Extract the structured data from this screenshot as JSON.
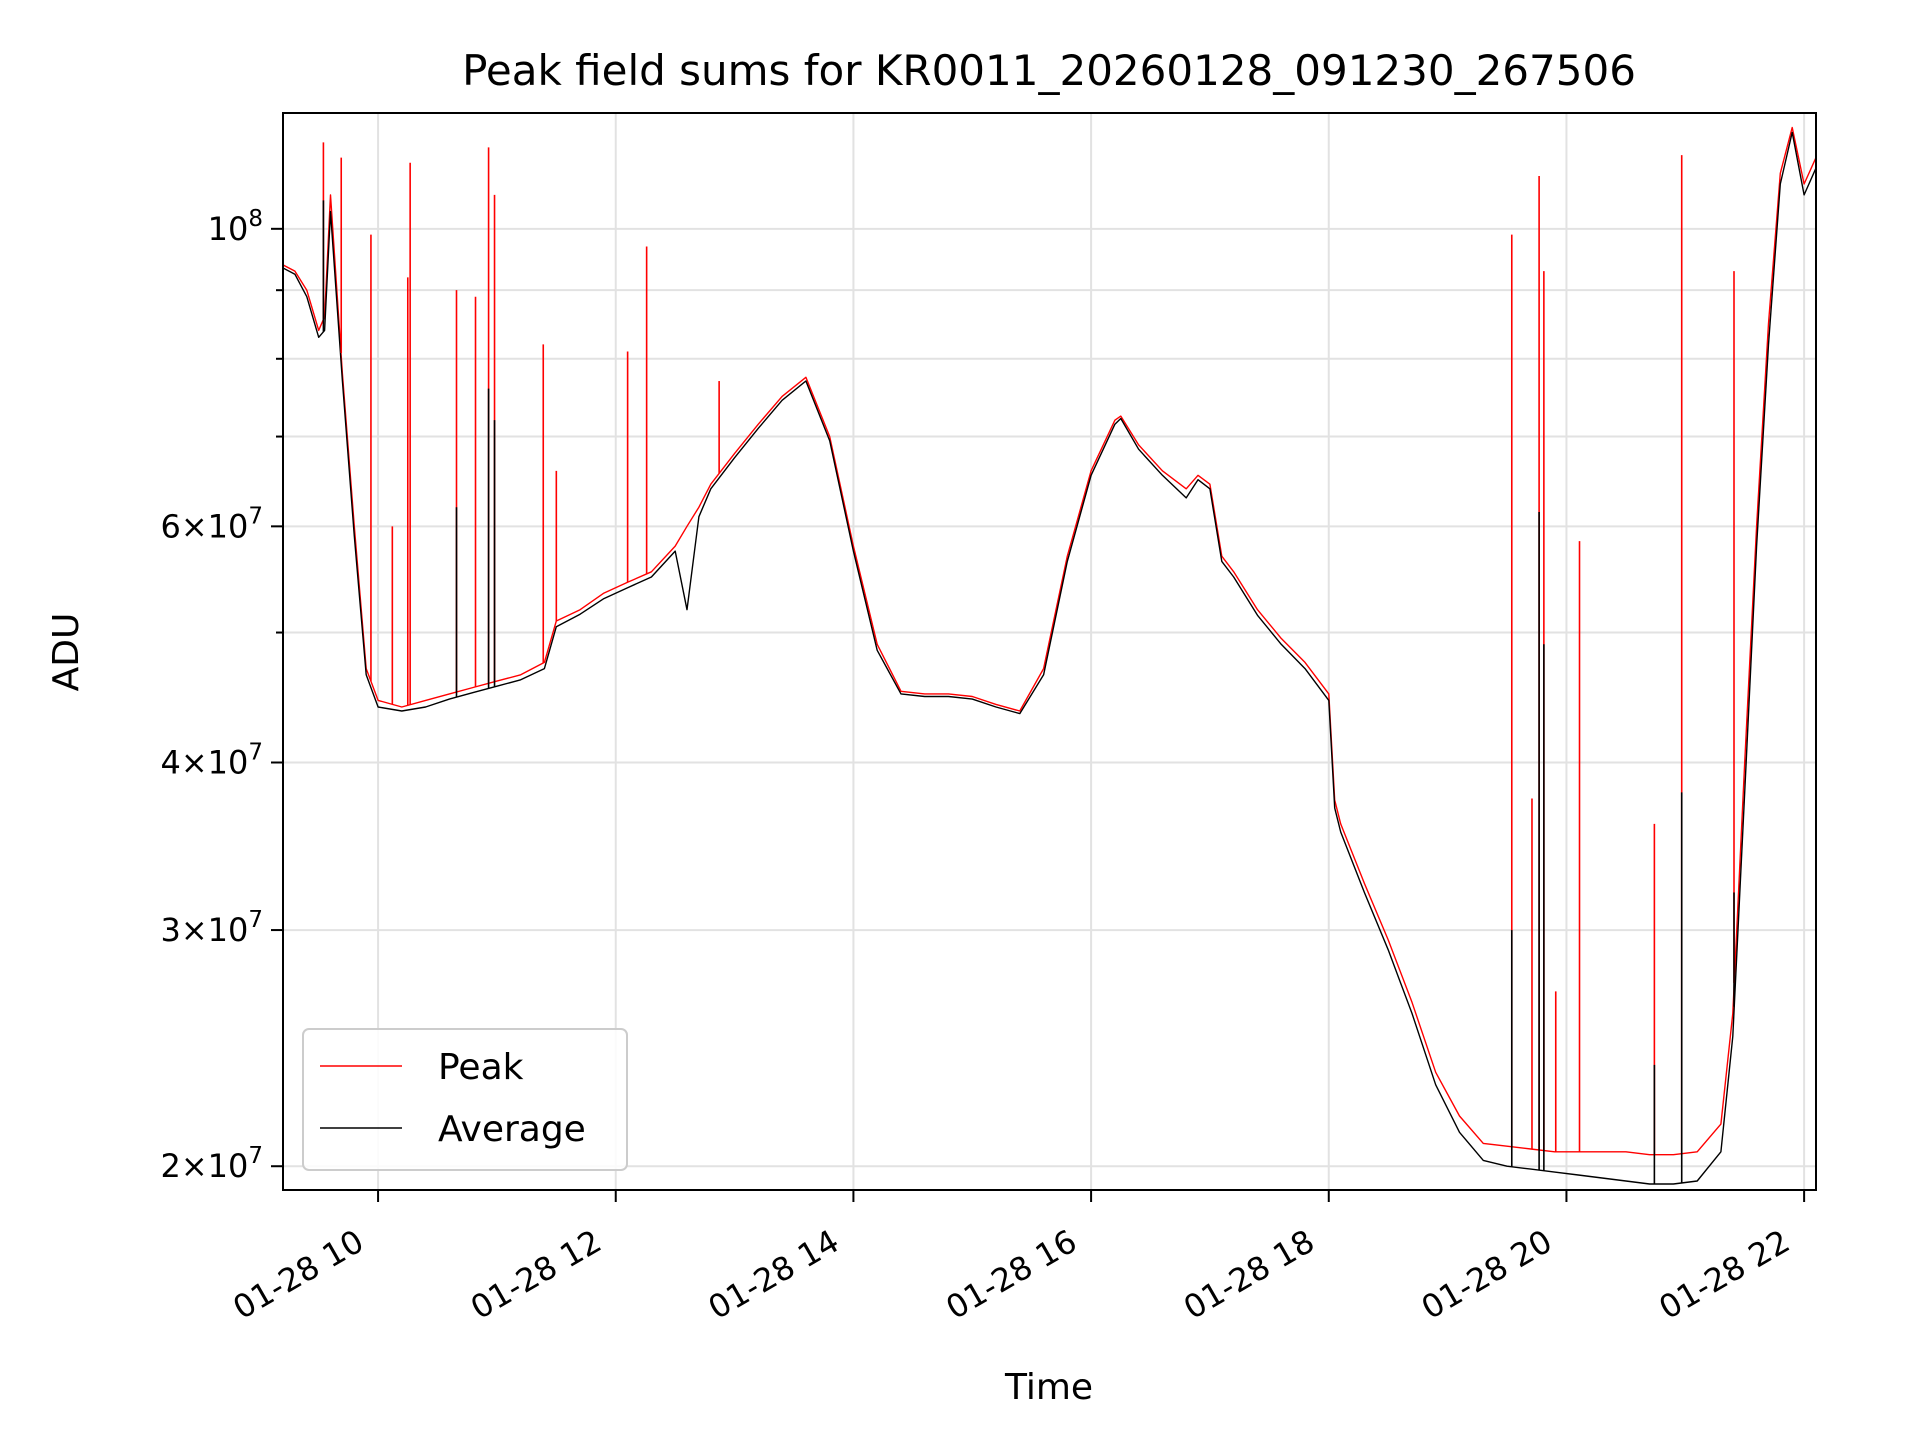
{
  "chart_data": {
    "type": "line",
    "title": "Peak field sums for KR0011_20260128_091230_267506",
    "xlabel": "Time",
    "ylabel": "ADU",
    "y_scale": "log",
    "grid": true,
    "legend_position": "lower-left",
    "xlim_hours": [
      9.2,
      22.1
    ],
    "ylim": [
      19200000,
      122000000
    ],
    "x_ticks": [
      {
        "value": 10,
        "label": "01-28 10"
      },
      {
        "value": 12,
        "label": "01-28 12"
      },
      {
        "value": 14,
        "label": "01-28 14"
      },
      {
        "value": 16,
        "label": "01-28 16"
      },
      {
        "value": 18,
        "label": "01-28 18"
      },
      {
        "value": 20,
        "label": "01-28 20"
      },
      {
        "value": 22,
        "label": "01-28 22"
      }
    ],
    "y_ticks": [
      {
        "value": 20000000,
        "mantissa": "2",
        "base": "10",
        "exp": "7"
      },
      {
        "value": 30000000,
        "mantissa": "3",
        "base": "10",
        "exp": "7"
      },
      {
        "value": 40000000,
        "mantissa": "4",
        "base": "10",
        "exp": "7"
      },
      {
        "value": 60000000,
        "mantissa": "6",
        "base": "10",
        "exp": "7"
      },
      {
        "value": 100000000,
        "mantissa": "",
        "base": "10",
        "exp": "8"
      }
    ],
    "y_minor_ticks": [
      50000000,
      70000000,
      80000000,
      90000000
    ],
    "series": [
      {
        "name": "Peak",
        "color": "#ff0000",
        "x": [
          9.2,
          9.3,
          9.4,
          9.5,
          9.55,
          9.6,
          9.7,
          9.8,
          9.9,
          10.0,
          10.2,
          10.4,
          10.6,
          10.8,
          11.0,
          11.2,
          11.4,
          11.5,
          11.7,
          11.9,
          12.1,
          12.3,
          12.5,
          12.6,
          12.7,
          12.8,
          13.0,
          13.2,
          13.4,
          13.6,
          13.8,
          14.0,
          14.2,
          14.4,
          14.6,
          14.8,
          15.0,
          15.2,
          15.4,
          15.6,
          15.8,
          16.0,
          16.2,
          16.25,
          16.4,
          16.6,
          16.8,
          16.9,
          17.0,
          17.1,
          17.2,
          17.4,
          17.6,
          17.8,
          18.0,
          18.05,
          18.1,
          18.3,
          18.5,
          18.7,
          18.9,
          19.1,
          19.3,
          19.5,
          19.7,
          19.9,
          20.1,
          20.3,
          20.5,
          20.7,
          20.9,
          21.1,
          21.3,
          21.4,
          21.5,
          21.6,
          21.7,
          21.8,
          21.9,
          22.0,
          22.1
        ],
        "values": [
          94000000,
          93000000,
          90000000,
          84000000,
          86000000,
          106000000,
          78000000,
          60000000,
          47000000,
          44500000,
          44000000,
          44500000,
          45000000,
          45500000,
          46000000,
          46500000,
          47500000,
          51000000,
          52000000,
          53500000,
          54500000,
          55500000,
          58000000,
          60000000,
          62000000,
          64500000,
          68000000,
          71500000,
          75000000,
          77500000,
          70000000,
          58000000,
          49000000,
          45200000,
          45000000,
          45000000,
          44800000,
          44200000,
          43700000,
          47000000,
          57000000,
          66000000,
          72000000,
          72500000,
          69000000,
          66000000,
          64000000,
          65500000,
          64500000,
          57000000,
          55500000,
          52000000,
          49500000,
          47500000,
          45000000,
          37500000,
          36000000,
          32500000,
          29500000,
          26500000,
          23500000,
          21800000,
          20800000,
          20700000,
          20600000,
          20500000,
          20500000,
          20500000,
          20500000,
          20400000,
          20400000,
          20500000,
          21500000,
          26000000,
          40000000,
          60000000,
          85000000,
          110000000,
          119000000,
          108000000,
          113000000
        ]
      },
      {
        "name": "Average",
        "color": "#000000",
        "x": [
          9.2,
          9.3,
          9.4,
          9.5,
          9.55,
          9.6,
          9.7,
          9.8,
          9.9,
          10.0,
          10.2,
          10.4,
          10.6,
          10.8,
          11.0,
          11.2,
          11.4,
          11.5,
          11.7,
          11.9,
          12.1,
          12.3,
          12.5,
          12.6,
          12.7,
          12.8,
          13.0,
          13.2,
          13.4,
          13.6,
          13.8,
          14.0,
          14.2,
          14.4,
          14.6,
          14.8,
          15.0,
          15.2,
          15.4,
          15.6,
          15.8,
          16.0,
          16.2,
          16.25,
          16.4,
          16.6,
          16.8,
          16.9,
          17.0,
          17.1,
          17.2,
          17.4,
          17.6,
          17.8,
          18.0,
          18.05,
          18.1,
          18.3,
          18.5,
          18.7,
          18.9,
          19.1,
          19.3,
          19.5,
          19.7,
          19.9,
          20.1,
          20.3,
          20.5,
          20.7,
          20.9,
          21.1,
          21.3,
          21.4,
          21.5,
          21.6,
          21.7,
          21.8,
          21.9,
          22.0,
          22.1
        ],
        "values": [
          93500000,
          92500000,
          89000000,
          83000000,
          84000000,
          103000000,
          77000000,
          59000000,
          46500000,
          44000000,
          43700000,
          44000000,
          44600000,
          45100000,
          45600000,
          46100000,
          47000000,
          50500000,
          51600000,
          53000000,
          54000000,
          55000000,
          57500000,
          52000000,
          61000000,
          64000000,
          67500000,
          71000000,
          74500000,
          77000000,
          69500000,
          57500000,
          48500000,
          45000000,
          44800000,
          44800000,
          44600000,
          44000000,
          43500000,
          46500000,
          56500000,
          65500000,
          71500000,
          72200000,
          68500000,
          65500000,
          63000000,
          65000000,
          64000000,
          56500000,
          55000000,
          51500000,
          49000000,
          47000000,
          44500000,
          37000000,
          35500000,
          32000000,
          29000000,
          26000000,
          23000000,
          21200000,
          20200000,
          20000000,
          19900000,
          19800000,
          19700000,
          19600000,
          19500000,
          19400000,
          19400000,
          19500000,
          20500000,
          25000000,
          38000000,
          58000000,
          82000000,
          108000000,
          118000000,
          106000000,
          111000000
        ]
      }
    ],
    "peak_spikes": [
      {
        "x": 9.54,
        "value": 116000000
      },
      {
        "x": 9.69,
        "value": 113000000
      },
      {
        "x": 9.94,
        "value": 99000000
      },
      {
        "x": 10.12,
        "value": 60000000
      },
      {
        "x": 10.25,
        "value": 92000000
      },
      {
        "x": 10.27,
        "value": 112000000
      },
      {
        "x": 10.66,
        "value": 90000000
      },
      {
        "x": 10.82,
        "value": 89000000
      },
      {
        "x": 10.93,
        "value": 115000000
      },
      {
        "x": 10.98,
        "value": 106000000
      },
      {
        "x": 11.39,
        "value": 82000000
      },
      {
        "x": 11.5,
        "value": 66000000
      },
      {
        "x": 12.1,
        "value": 81000000
      },
      {
        "x": 12.26,
        "value": 97000000
      },
      {
        "x": 12.87,
        "value": 77000000
      },
      {
        "x": 19.54,
        "value": 99000000
      },
      {
        "x": 19.71,
        "value": 37600000
      },
      {
        "x": 19.77,
        "value": 109500000
      },
      {
        "x": 19.81,
        "value": 93000000
      },
      {
        "x": 19.91,
        "value": 27000000
      },
      {
        "x": 20.11,
        "value": 58500000
      },
      {
        "x": 20.74,
        "value": 36000000
      },
      {
        "x": 20.97,
        "value": 113500000
      },
      {
        "x": 21.41,
        "value": 93000000
      }
    ],
    "average_spikes": [
      {
        "x": 9.54,
        "value": 105000000
      },
      {
        "x": 10.66,
        "value": 62000000
      },
      {
        "x": 10.93,
        "value": 76000000
      },
      {
        "x": 10.98,
        "value": 72000000
      },
      {
        "x": 19.54,
        "value": 30000000
      },
      {
        "x": 19.77,
        "value": 61500000
      },
      {
        "x": 19.81,
        "value": 49000000
      },
      {
        "x": 20.74,
        "value": 23800000
      },
      {
        "x": 20.97,
        "value": 38000000
      },
      {
        "x": 21.41,
        "value": 32000000
      }
    ]
  }
}
